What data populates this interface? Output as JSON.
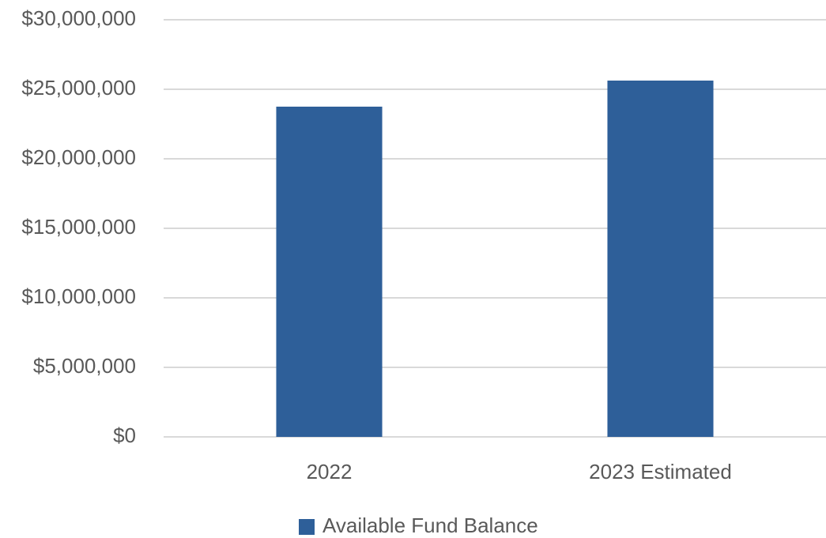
{
  "chart_data": {
    "type": "bar",
    "categories": [
      "2022",
      "2023 Estimated"
    ],
    "series": [
      {
        "name": "Available Fund Balance",
        "color": "#2e5f99",
        "values": [
          23750000,
          25625000
        ]
      }
    ],
    "ylim": [
      0,
      30000000
    ],
    "yticks": [
      0,
      {
        "value": 0,
        "label": "$0"
      },
      {
        "value": 5000000,
        "label": "$5,000,000"
      },
      {
        "value": 10000000,
        "label": "$10,000,000"
      },
      {
        "value": 15000000,
        "label": "$15,000,000"
      },
      {
        "value": 20000000,
        "label": "$20,000,000"
      },
      {
        "value": 25000000,
        "label": "$25,000,000"
      },
      {
        "value": 30000000,
        "label": "$30,000,000"
      }
    ],
    "grid": true,
    "legend": "bottom"
  }
}
